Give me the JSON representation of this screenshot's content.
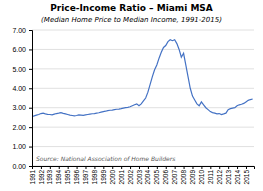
{
  "chart_data": {
    "type": "line",
    "title": "Price-Income Ratio – Miami MSA",
    "subtitle": "(Median Home Price to Median Income, 1991-2015)",
    "annotations": [
      "Source: National Association of Home Builders"
    ],
    "color": "#4472C4",
    "grid": true,
    "xlim": [
      1991,
      2015.9
    ],
    "xticks": [
      1991,
      1992,
      1993,
      1994,
      1995,
      1996,
      1997,
      1998,
      1999,
      2000,
      2001,
      2002,
      2003,
      2004,
      2005,
      2006,
      2007,
      2008,
      2009,
      2010,
      2011,
      2012,
      2013,
      2014,
      2015
    ],
    "ylim": [
      0.0,
      7.0
    ],
    "yticks": [
      {
        "value": 0,
        "label": "0.00"
      },
      {
        "value": 1,
        "label": "1.00"
      },
      {
        "value": 2,
        "label": "2.00"
      },
      {
        "value": 3,
        "label": "3.00"
      },
      {
        "value": 4,
        "label": "4.00"
      },
      {
        "value": 5,
        "label": "5.00"
      },
      {
        "value": 6,
        "label": "6.00"
      },
      {
        "value": 7,
        "label": "7.00"
      }
    ],
    "x": [
      1991.0,
      1991.25,
      1991.5,
      1991.75,
      1992.0,
      1992.25,
      1992.5,
      1992.75,
      1993.0,
      1993.25,
      1993.5,
      1993.75,
      1994.0,
      1994.25,
      1994.5,
      1994.75,
      1995.0,
      1995.25,
      1995.5,
      1995.75,
      1996.0,
      1996.25,
      1996.5,
      1996.75,
      1997.0,
      1997.25,
      1997.5,
      1997.75,
      1998.0,
      1998.25,
      1998.5,
      1998.75,
      1999.0,
      1999.25,
      1999.5,
      1999.75,
      2000.0,
      2000.25,
      2000.5,
      2000.75,
      2001.0,
      2001.25,
      2001.5,
      2001.75,
      2002.0,
      2002.25,
      2002.5,
      2002.75,
      2003.0,
      2003.25,
      2003.5,
      2003.75,
      2004.0,
      2004.25,
      2004.5,
      2004.75,
      2005.0,
      2005.25,
      2005.5,
      2005.75,
      2006.0,
      2006.25,
      2006.5,
      2006.75,
      2007.0,
      2007.25,
      2007.5,
      2007.75,
      2008.0,
      2008.25,
      2008.5,
      2008.75,
      2009.0,
      2009.25,
      2009.5,
      2009.75,
      2010.0,
      2010.25,
      2010.5,
      2010.75,
      2011.0,
      2011.25,
      2011.5,
      2011.75,
      2012.0,
      2012.25,
      2012.5,
      2012.75,
      2013.0,
      2013.25,
      2013.5,
      2013.75,
      2014.0,
      2014.25,
      2014.5,
      2014.75,
      2015.0,
      2015.25,
      2015.5,
      2015.75
    ],
    "values": [
      2.55,
      2.58,
      2.62,
      2.65,
      2.7,
      2.72,
      2.68,
      2.66,
      2.65,
      2.63,
      2.67,
      2.7,
      2.72,
      2.75,
      2.71,
      2.68,
      2.65,
      2.62,
      2.6,
      2.58,
      2.6,
      2.63,
      2.62,
      2.61,
      2.63,
      2.65,
      2.67,
      2.69,
      2.7,
      2.72,
      2.74,
      2.77,
      2.8,
      2.82,
      2.85,
      2.87,
      2.88,
      2.9,
      2.92,
      2.93,
      2.95,
      2.98,
      3.0,
      3.02,
      3.05,
      3.1,
      3.15,
      3.2,
      3.1,
      3.2,
      3.35,
      3.5,
      3.8,
      4.2,
      4.6,
      4.95,
      5.2,
      5.55,
      5.85,
      6.1,
      6.2,
      6.4,
      6.5,
      6.45,
      6.5,
      6.3,
      6.0,
      5.6,
      5.8,
      5.2,
      4.6,
      4.0,
      3.6,
      3.4,
      3.2,
      3.1,
      3.3,
      3.15,
      3.0,
      2.9,
      2.8,
      2.75,
      2.72,
      2.68,
      2.7,
      2.65,
      2.68,
      2.72,
      2.9,
      2.95,
      2.98,
      3.0,
      3.1,
      3.15,
      3.18,
      3.22,
      3.3,
      3.38,
      3.42,
      3.45
    ]
  }
}
